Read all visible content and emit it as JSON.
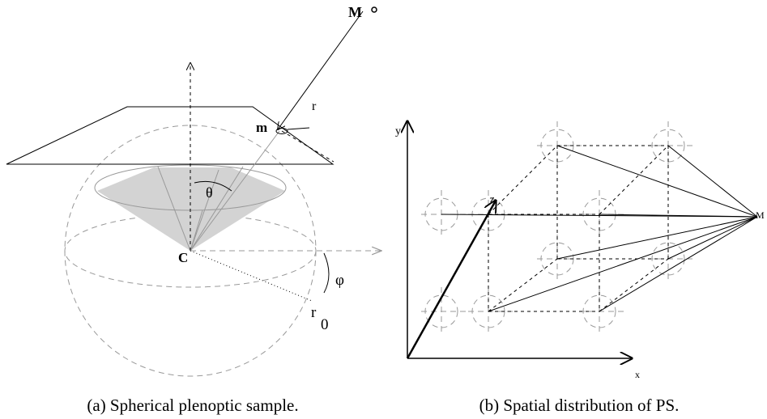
{
  "panel_a": {
    "labels": {
      "M": "M",
      "m": "m",
      "r": "r",
      "theta": "θ",
      "C": "C",
      "phi": "φ",
      "r0": "r",
      "r0_sub": "0"
    },
    "caption": "(a)  Spherical plenoptic sample."
  },
  "panel_b": {
    "labels": {
      "y": "y",
      "z": "z",
      "x": "x",
      "M": "M"
    },
    "caption": "(b)  Spatial distribution of PS."
  }
}
